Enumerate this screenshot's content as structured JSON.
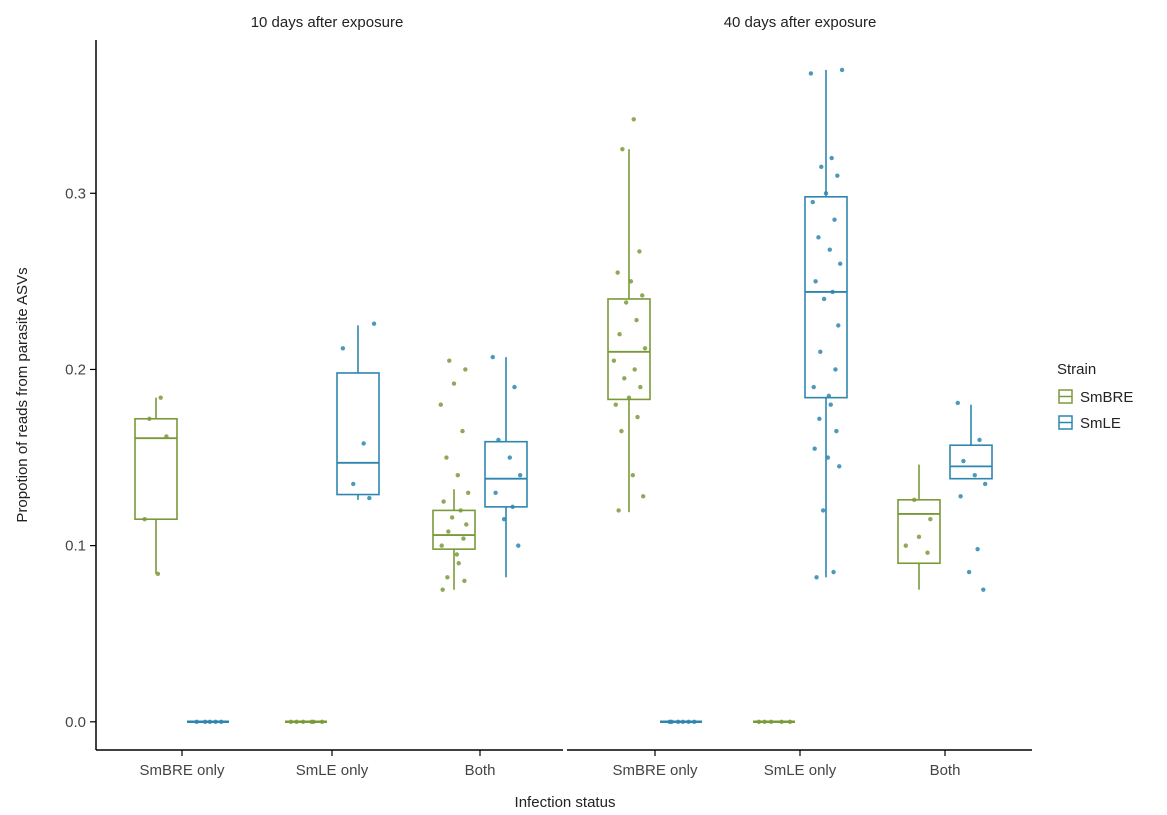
{
  "chart_data": {
    "type": "box",
    "ylabel": "Propotion of reads from parasite ASVs",
    "xlabel": "Infection status",
    "ylim": [
      -0.016,
      0.387
    ],
    "yticks": [
      0.0,
      0.1,
      0.2,
      0.3
    ],
    "ytick_labels": [
      "0.0",
      "0.1",
      "0.2",
      "0.3"
    ],
    "categories": [
      "SmBRE  only",
      "SmLE only",
      "Both"
    ],
    "legend": {
      "title": "Strain",
      "position": "right",
      "entries": [
        {
          "name": "SmBRE",
          "color": "#7a9a3a"
        },
        {
          "name": "SmLE",
          "color": "#2e86b0"
        }
      ]
    },
    "panels": [
      {
        "title": "10 days after exposure",
        "groups": [
          {
            "category": "SmBRE  only",
            "strain": "SmBRE",
            "box": {
              "min": 0.084,
              "q1": 0.115,
              "median": 0.161,
              "q3": 0.172,
              "max": 0.184
            },
            "points": [
              0.184,
              0.172,
              0.162,
              0.115,
              0.084
            ]
          },
          {
            "category": "SmBRE  only",
            "strain": "SmLE",
            "box": {
              "min": 0.0,
              "q1": 0.0,
              "median": 0.0,
              "q3": 0.0,
              "max": 0.0
            },
            "points": [
              0.0,
              0.0,
              0.0,
              0.0,
              0.0
            ]
          },
          {
            "category": "SmLE only",
            "strain": "SmBRE",
            "box": {
              "min": 0.0,
              "q1": 0.0,
              "median": 0.0,
              "q3": 0.0,
              "max": 0.0
            },
            "points": [
              0.0,
              0.0,
              0.0,
              0.0,
              0.0,
              0.0
            ]
          },
          {
            "category": "SmLE only",
            "strain": "SmLE",
            "box": {
              "min": 0.126,
              "q1": 0.129,
              "median": 0.147,
              "q3": 0.198,
              "max": 0.225
            },
            "points": [
              0.226,
              0.212,
              0.158,
              0.135,
              0.127
            ]
          },
          {
            "category": "Both",
            "strain": "SmBRE",
            "box": {
              "min": 0.075,
              "q1": 0.098,
              "median": 0.106,
              "q3": 0.12,
              "max": 0.132
            },
            "points": [
              0.205,
              0.2,
              0.192,
              0.18,
              0.165,
              0.15,
              0.14,
              0.13,
              0.125,
              0.12,
              0.116,
              0.112,
              0.108,
              0.104,
              0.1,
              0.095,
              0.09,
              0.082,
              0.08,
              0.075
            ]
          },
          {
            "category": "Both",
            "strain": "SmLE",
            "box": {
              "min": 0.082,
              "q1": 0.122,
              "median": 0.138,
              "q3": 0.159,
              "max": 0.207
            },
            "points": [
              0.207,
              0.19,
              0.16,
              0.15,
              0.14,
              0.13,
              0.122,
              0.115,
              0.1
            ]
          }
        ]
      },
      {
        "title": "40 days after exposure",
        "groups": [
          {
            "category": "SmBRE  only",
            "strain": "SmBRE",
            "box": {
              "min": 0.119,
              "q1": 0.183,
              "median": 0.21,
              "q3": 0.24,
              "max": 0.325
            },
            "points": [
              0.342,
              0.325,
              0.267,
              0.255,
              0.25,
              0.242,
              0.238,
              0.228,
              0.22,
              0.212,
              0.205,
              0.2,
              0.195,
              0.19,
              0.184,
              0.18,
              0.173,
              0.165,
              0.14,
              0.128,
              0.12
            ]
          },
          {
            "category": "SmBRE  only",
            "strain": "SmLE",
            "box": {
              "min": 0.0,
              "q1": 0.0,
              "median": 0.0,
              "q3": 0.0,
              "max": 0.0
            },
            "points": [
              0.0,
              0.0,
              0.0,
              0.0,
              0.0,
              0.0
            ]
          },
          {
            "category": "SmLE only",
            "strain": "SmBRE",
            "box": {
              "min": 0.0,
              "q1": 0.0,
              "median": 0.0,
              "q3": 0.0,
              "max": 0.0
            },
            "points": [
              0.0,
              0.0,
              0.0,
              0.0,
              0.0
            ]
          },
          {
            "category": "SmLE only",
            "strain": "SmLE",
            "box": {
              "min": 0.082,
              "q1": 0.184,
              "median": 0.244,
              "q3": 0.298,
              "max": 0.37
            },
            "points": [
              0.37,
              0.368,
              0.32,
              0.315,
              0.31,
              0.3,
              0.295,
              0.285,
              0.275,
              0.268,
              0.26,
              0.25,
              0.244,
              0.24,
              0.225,
              0.21,
              0.2,
              0.19,
              0.185,
              0.18,
              0.172,
              0.165,
              0.155,
              0.15,
              0.145,
              0.12,
              0.085,
              0.082
            ]
          },
          {
            "category": "Both",
            "strain": "SmBRE",
            "box": {
              "min": 0.075,
              "q1": 0.09,
              "median": 0.118,
              "q3": 0.126,
              "max": 0.146
            },
            "points": [
              0.126,
              0.115,
              0.105,
              0.1,
              0.096
            ]
          },
          {
            "category": "Both",
            "strain": "SmLE",
            "box": {
              "min": 0.138,
              "q1": 0.138,
              "median": 0.145,
              "q3": 0.157,
              "max": 0.18
            },
            "points": [
              0.181,
              0.16,
              0.148,
              0.14,
              0.135,
              0.128,
              0.098,
              0.085,
              0.075
            ]
          }
        ]
      }
    ]
  }
}
